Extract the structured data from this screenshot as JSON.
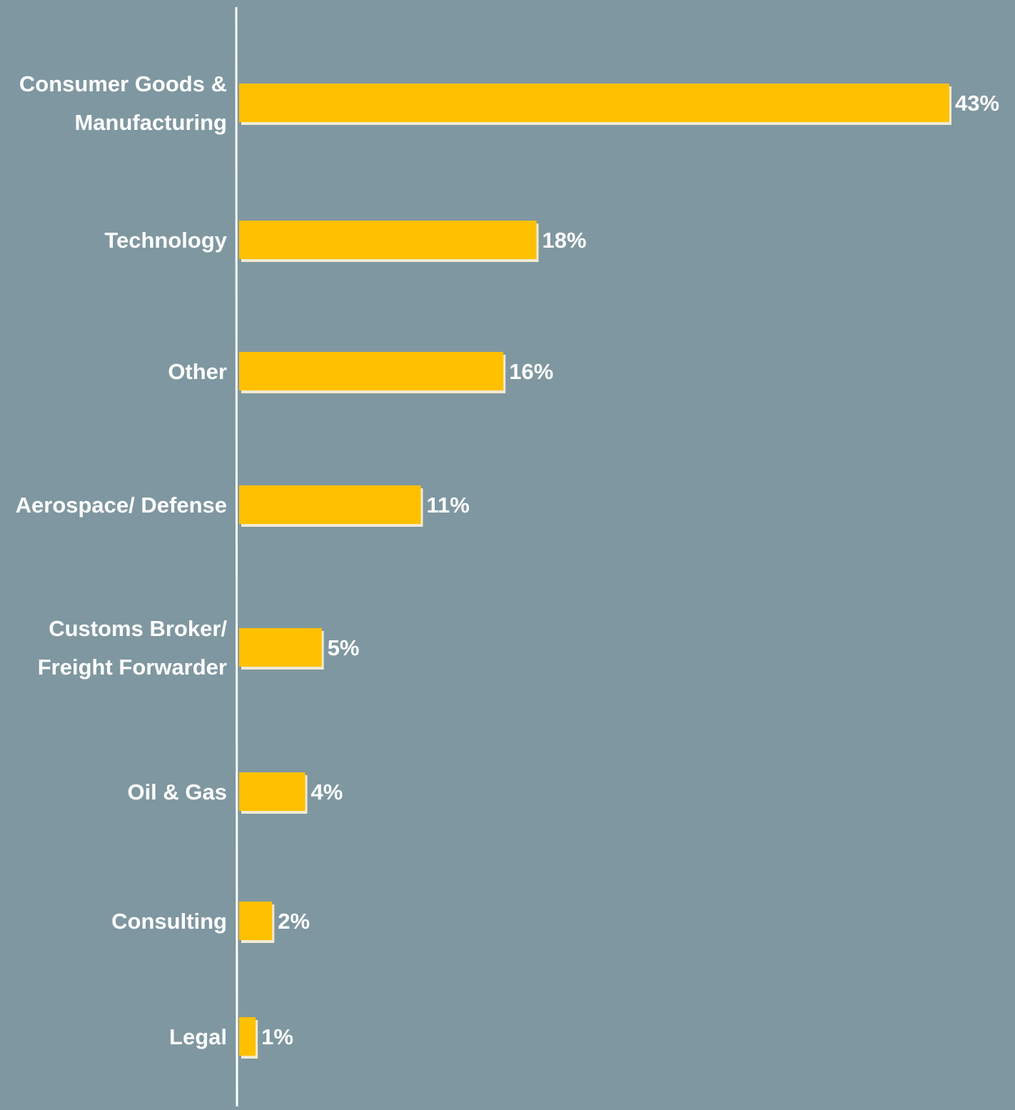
{
  "chart_data": {
    "type": "bar",
    "orientation": "horizontal",
    "title": "",
    "xlabel": "",
    "ylabel": "",
    "categories": [
      [
        "Consumer Goods &",
        "Manufacturing"
      ],
      [
        "Technology"
      ],
      [
        "Other"
      ],
      [
        "Aerospace/ Defense"
      ],
      [
        "Customs Broker/",
        "Freight Forwarder"
      ],
      [
        "Oil & Gas"
      ],
      [
        "Consulting"
      ],
      [
        "Legal"
      ]
    ],
    "values": [
      43,
      18,
      16,
      11,
      5,
      4,
      2,
      1
    ],
    "value_labels": [
      "43%",
      "18%",
      "16%",
      "11%",
      "5%",
      "4%",
      "2%",
      "1%"
    ],
    "unit": "%",
    "xlim": [
      0,
      43
    ],
    "grid": false,
    "legend": "none",
    "colors": {
      "background": "#7f97a0",
      "bar": "#ffc000",
      "bar_shadow": "#f1ead2",
      "text": "#ffffff",
      "axis": "#ffffff"
    }
  }
}
